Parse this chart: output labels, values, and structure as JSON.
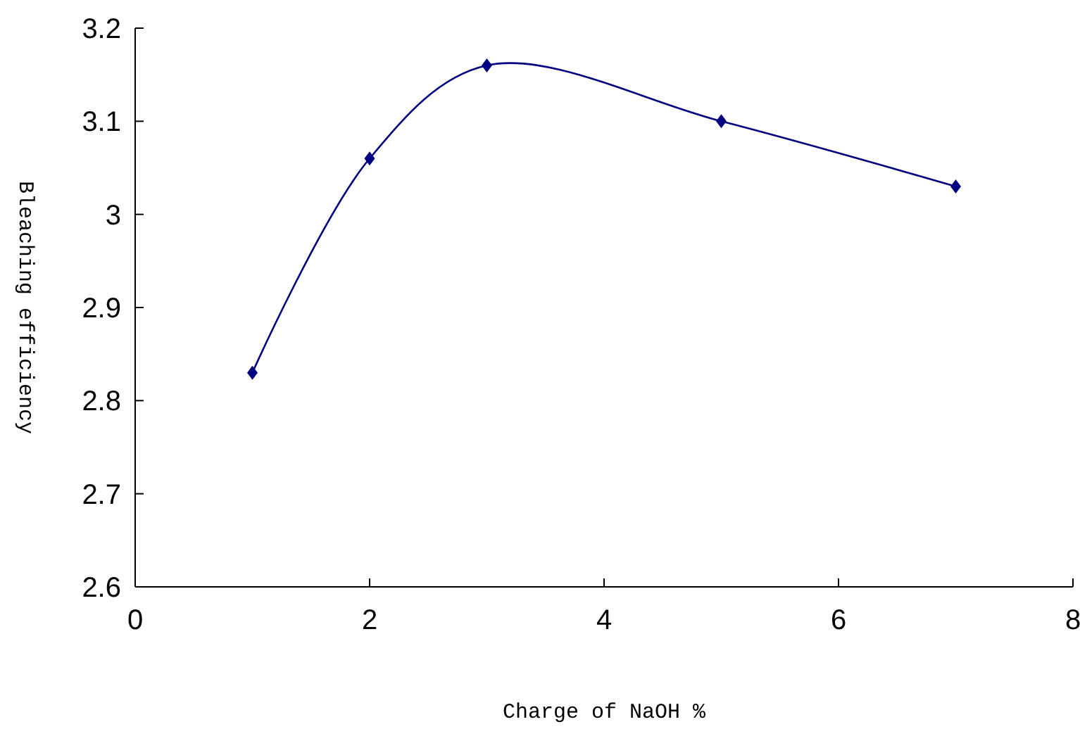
{
  "chart_data": {
    "type": "line",
    "xlabel": "Charge of NaOH %",
    "ylabel": "Bleaching efficiency",
    "x": [
      1,
      2,
      3,
      5,
      7
    ],
    "series": [
      {
        "color": "#000080",
        "values": [
          2.83,
          3.06,
          3.16,
          3.1,
          3.03
        ]
      }
    ],
    "xlim": [
      0,
      8
    ],
    "xticks": [
      0,
      2,
      4,
      6,
      8
    ],
    "ylim": [
      2.6,
      3.2
    ],
    "yticks": [
      2.6,
      2.7,
      2.8,
      2.9,
      3,
      3.1,
      3.2
    ],
    "grid": false,
    "marker": "diamond",
    "line_style": "solid"
  }
}
